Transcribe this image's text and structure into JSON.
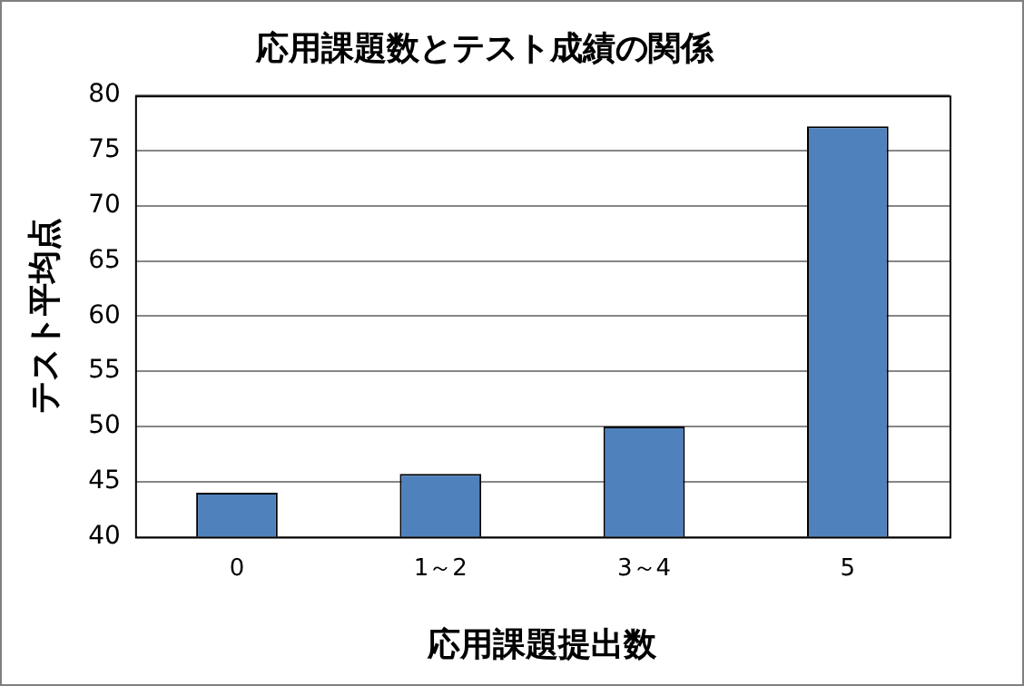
{
  "chart_data": {
    "type": "bar",
    "title": "応用課題数とテスト成績の関係",
    "xlabel": "応用課題提出数",
    "ylabel": "テスト平均点",
    "categories": [
      "0",
      "1～2",
      "3～4",
      "5"
    ],
    "values": [
      44.0,
      45.7,
      50.0,
      77.2
    ],
    "color": "#4f81bd",
    "ylim": [
      40,
      80
    ],
    "yticks": [
      40,
      45,
      50,
      55,
      60,
      65,
      70,
      75,
      80
    ],
    "grid": "y",
    "legend": false
  }
}
